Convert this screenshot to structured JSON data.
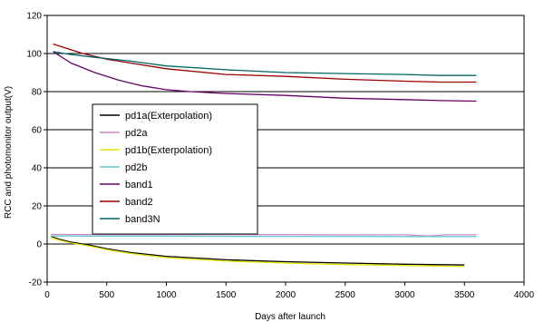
{
  "chart_data": {
    "type": "line",
    "title": "",
    "xlabel": "Days after launch",
    "ylabel": "RCC and photomonitor output(V)",
    "xlim": [
      0,
      4000
    ],
    "ylim": [
      -20,
      120
    ],
    "xticks": [
      0,
      500,
      1000,
      1500,
      2000,
      2500,
      3000,
      3500,
      4000
    ],
    "yticks": [
      -20,
      0,
      20,
      40,
      60,
      80,
      100,
      120
    ],
    "grid": "horizontal",
    "legend_position": "left-center",
    "series": [
      {
        "name": "pd1a(Exterpolation)",
        "color": "#000000",
        "x": [
          30,
          100,
          200,
          350,
          500,
          700,
          1000,
          1500,
          2000,
          2500,
          3000,
          3500
        ],
        "y": [
          4,
          2.5,
          1,
          -0.5,
          -2.5,
          -4.5,
          -6.5,
          -8.3,
          -9.3,
          -10,
          -10.6,
          -11
        ]
      },
      {
        "name": "pd2a",
        "color": "#cc88cc",
        "x": [
          30,
          500,
          1000,
          1500,
          2000,
          2500,
          3000,
          3200,
          3350,
          3600
        ],
        "y": [
          5,
          4.9,
          4.9,
          4.9,
          4.9,
          4.8,
          4.8,
          4.2,
          4.8,
          4.8
        ]
      },
      {
        "name": "pd1b(Exterpolation)",
        "color": "#e6e600",
        "x": [
          30,
          100,
          200,
          350,
          500,
          700,
          1000,
          1500,
          2000,
          2500,
          3000,
          3500
        ],
        "y": [
          3.5,
          2,
          0.5,
          -1,
          -3,
          -5,
          -7.2,
          -9,
          -10,
          -10.8,
          -11.3,
          -11.8
        ]
      },
      {
        "name": "pd2b",
        "color": "#66cccc",
        "x": [
          30,
          500,
          1000,
          1500,
          2000,
          2500,
          3000,
          3600
        ],
        "y": [
          4.2,
          4.1,
          4.1,
          4.0,
          4.0,
          4.0,
          3.9,
          3.9
        ]
      },
      {
        "name": "band1",
        "color": "#660066",
        "x": [
          50,
          200,
          400,
          600,
          800,
          1000,
          1200,
          1500,
          2000,
          2500,
          3000,
          3300,
          3600
        ],
        "y": [
          101,
          95,
          90,
          86,
          83,
          81,
          80,
          79,
          78,
          76.5,
          75.8,
          75.3,
          75
        ]
      },
      {
        "name": "band2",
        "color": "#990000",
        "x": [
          50,
          150,
          300,
          500,
          700,
          1000,
          1500,
          2000,
          2500,
          3000,
          3300,
          3600
        ],
        "y": [
          105,
          103,
          100,
          97,
          95,
          92,
          89,
          88,
          86.5,
          85.5,
          85,
          85
        ]
      },
      {
        "name": "band3N",
        "color": "#006666",
        "x": [
          50,
          200,
          400,
          700,
          1000,
          1500,
          2000,
          2500,
          3000,
          3300,
          3600
        ],
        "y": [
          101,
          99.5,
          98,
          96,
          93.5,
          91.5,
          90,
          89.5,
          89,
          88.5,
          88.5
        ]
      }
    ]
  }
}
